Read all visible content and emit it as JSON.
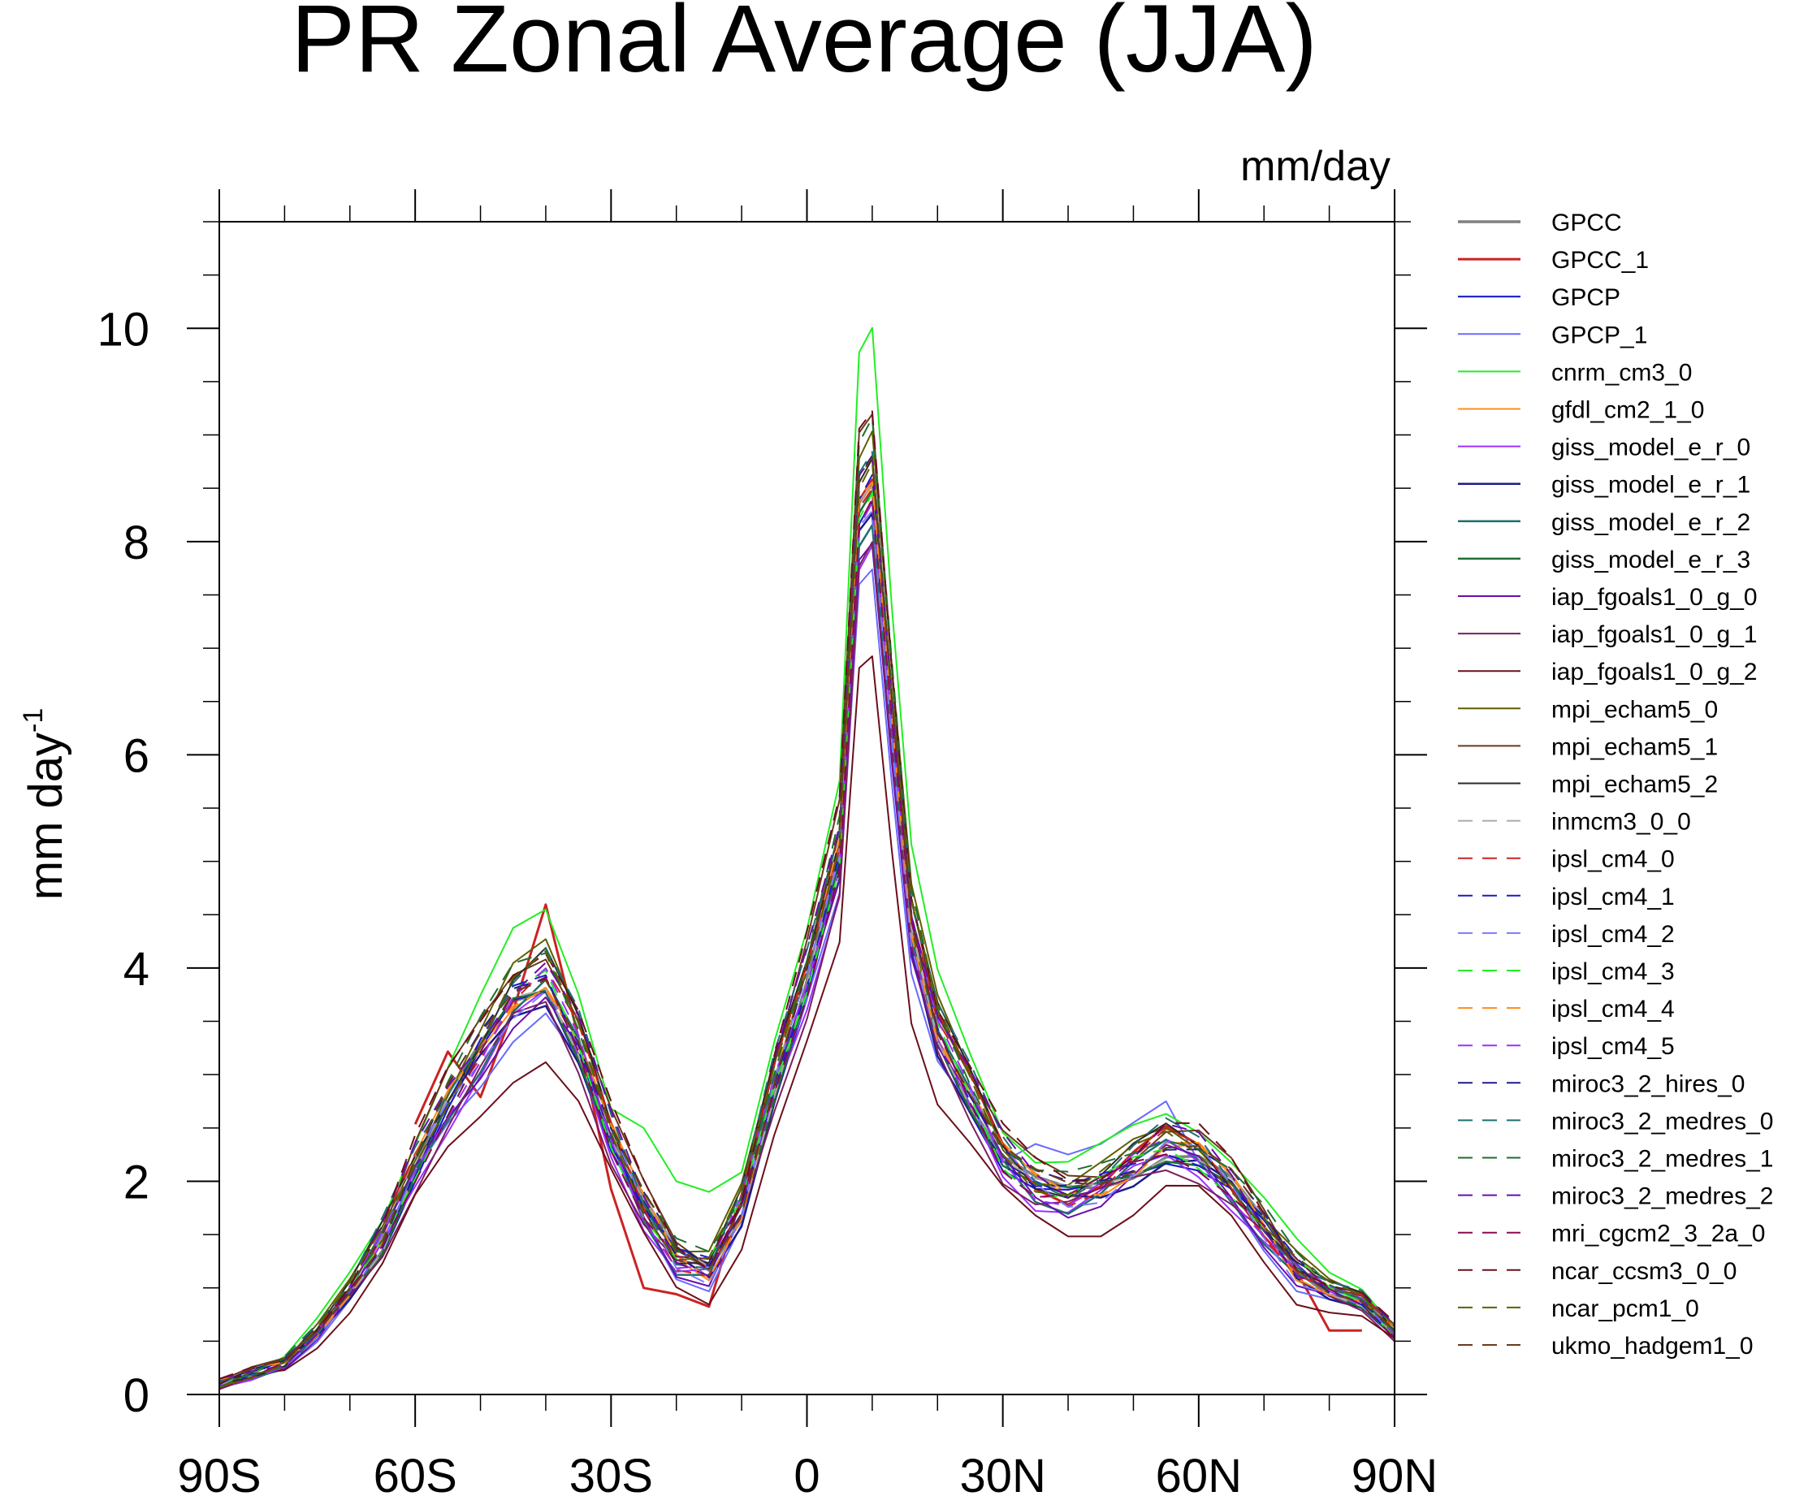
{
  "chart_data": {
    "type": "line",
    "title": "PR Zonal Average (JJA)",
    "units": "mm/day",
    "ylabel": "mm day",
    "ylabel_exponent": "-1",
    "xlabel": "",
    "xlim": [
      -90,
      90
    ],
    "ylim": [
      0,
      11
    ],
    "x_ticks": [
      -90,
      -60,
      -30,
      0,
      30,
      60,
      90
    ],
    "x_tick_labels": [
      "90S",
      "60S",
      "30S",
      "0",
      "30N",
      "60N",
      "90N"
    ],
    "y_ticks": [
      0,
      2,
      4,
      6,
      8,
      10
    ],
    "y_tick_labels": [
      "0",
      "2",
      "4",
      "6",
      "8",
      "10"
    ],
    "legend_position": "right",
    "base_profile": [
      [
        -90,
        0.1
      ],
      [
        -85,
        0.2
      ],
      [
        -80,
        0.3
      ],
      [
        -75,
        0.6
      ],
      [
        -70,
        1.0
      ],
      [
        -65,
        1.5
      ],
      [
        -60,
        2.2
      ],
      [
        -55,
        2.8
      ],
      [
        -50,
        3.3
      ],
      [
        -45,
        3.8
      ],
      [
        -40,
        4.0
      ],
      [
        -35,
        3.4
      ],
      [
        -30,
        2.5
      ],
      [
        -25,
        1.8
      ],
      [
        -20,
        1.3
      ],
      [
        -15,
        1.2
      ],
      [
        -10,
        1.8
      ],
      [
        -5,
        3.0
      ],
      [
        0,
        4.0
      ],
      [
        5,
        5.2
      ],
      [
        8,
        8.5
      ],
      [
        10,
        8.7
      ],
      [
        13,
        6.5
      ],
      [
        16,
        4.5
      ],
      [
        20,
        3.5
      ],
      [
        25,
        2.9
      ],
      [
        30,
        2.3
      ],
      [
        35,
        2.0
      ],
      [
        40,
        1.9
      ],
      [
        45,
        2.0
      ],
      [
        50,
        2.2
      ],
      [
        55,
        2.4
      ],
      [
        60,
        2.3
      ],
      [
        65,
        2.0
      ],
      [
        70,
        1.6
      ],
      [
        75,
        1.2
      ],
      [
        80,
        1.0
      ],
      [
        85,
        0.9
      ],
      [
        90,
        0.6
      ]
    ],
    "series": [
      {
        "name": "GPCC",
        "color": "#808080",
        "dash": "solid",
        "width": 3.5,
        "scale": 0.97,
        "variant": "obs"
      },
      {
        "name": "GPCC_1",
        "color": "#cc2222",
        "dash": "solid",
        "width": 3,
        "scale": 1.0,
        "variant": "gpcc1"
      },
      {
        "name": "GPCP",
        "color": "#1a1acc",
        "dash": "solid",
        "width": 2.2,
        "scale": 0.95,
        "variant": "obs"
      },
      {
        "name": "GPCP_1",
        "color": "#6a6aff",
        "dash": "solid",
        "width": 2,
        "scale": 0.9,
        "variant": "gpcp1"
      },
      {
        "name": "cnrm_cm3_0",
        "color": "#22ee22",
        "dash": "solid",
        "width": 2,
        "scale": 1.12,
        "variant": "wet"
      },
      {
        "name": "gfdl_cm2_1_0",
        "color": "#ff8c1a",
        "dash": "solid",
        "width": 2,
        "scale": 0.98,
        "variant": "model"
      },
      {
        "name": "giss_model_e_r_0",
        "color": "#9b30ff",
        "dash": "solid",
        "width": 2,
        "scale": 0.92,
        "variant": "model"
      },
      {
        "name": "giss_model_e_r_1",
        "color": "#1c1c8c",
        "dash": "solid",
        "width": 2.5,
        "scale": 0.94,
        "variant": "model"
      },
      {
        "name": "giss_model_e_r_2",
        "color": "#1f6f6f",
        "dash": "solid",
        "width": 2.5,
        "scale": 0.95,
        "variant": "model"
      },
      {
        "name": "giss_model_e_r_3",
        "color": "#1f6f2f",
        "dash": "solid",
        "width": 2.5,
        "scale": 0.96,
        "variant": "model"
      },
      {
        "name": "iap_fgoals1_0_g_0",
        "color": "#6a0dad",
        "dash": "solid",
        "width": 2,
        "scale": 0.93,
        "variant": "model"
      },
      {
        "name": "iap_fgoals1_0_g_1",
        "color": "#7a1f5f",
        "dash": "solid",
        "width": 2,
        "scale": 0.91,
        "variant": "model"
      },
      {
        "name": "iap_fgoals1_0_g_2",
        "color": "#6b0f1a",
        "dash": "solid",
        "width": 2,
        "scale": 0.8,
        "variant": "model"
      },
      {
        "name": "mpi_echam5_0",
        "color": "#5f5f00",
        "dash": "solid",
        "width": 2,
        "scale": 1.04,
        "variant": "model"
      },
      {
        "name": "mpi_echam5_1",
        "color": "#6b3a1a",
        "dash": "solid",
        "width": 2,
        "scale": 1.05,
        "variant": "model"
      },
      {
        "name": "mpi_echam5_2",
        "color": "#2a2a2a",
        "dash": "solid",
        "width": 2,
        "scale": 1.02,
        "variant": "model"
      },
      {
        "name": "inmcm3_0_0",
        "color": "#aaaaaa",
        "dash": "dashed",
        "width": 2,
        "scale": 0.97,
        "variant": "model"
      },
      {
        "name": "ipsl_cm4_0",
        "color": "#cc2222",
        "dash": "dashed",
        "width": 2,
        "scale": 0.99,
        "variant": "model"
      },
      {
        "name": "ipsl_cm4_1",
        "color": "#1a1acc",
        "dash": "dashed",
        "width": 2,
        "scale": 0.98,
        "variant": "model"
      },
      {
        "name": "ipsl_cm4_2",
        "color": "#7a7aff",
        "dash": "dashed",
        "width": 2,
        "scale": 0.96,
        "variant": "model"
      },
      {
        "name": "ipsl_cm4_3",
        "color": "#22ee22",
        "dash": "dashed",
        "width": 2,
        "scale": 0.97,
        "variant": "model"
      },
      {
        "name": "ipsl_cm4_4",
        "color": "#ff8c1a",
        "dash": "dashed",
        "width": 2,
        "scale": 0.98,
        "variant": "model"
      },
      {
        "name": "ipsl_cm4_5",
        "color": "#9b30ff",
        "dash": "dashed",
        "width": 2,
        "scale": 0.97,
        "variant": "model"
      },
      {
        "name": "miroc3_2_hires_0",
        "color": "#1c1c8c",
        "dash": "dashed",
        "width": 2,
        "scale": 1.0,
        "variant": "model"
      },
      {
        "name": "miroc3_2_medres_0",
        "color": "#1f6f6f",
        "dash": "dashed",
        "width": 2,
        "scale": 1.03,
        "variant": "model"
      },
      {
        "name": "miroc3_2_medres_1",
        "color": "#1f6f2f",
        "dash": "dashed",
        "width": 2,
        "scale": 1.04,
        "variant": "model"
      },
      {
        "name": "miroc3_2_medres_2",
        "color": "#6a0dad",
        "dash": "dashed",
        "width": 2,
        "scale": 1.02,
        "variant": "model"
      },
      {
        "name": "mri_cgcm2_3_2a_0",
        "color": "#8b0a50",
        "dash": "dashed",
        "width": 2,
        "scale": 0.96,
        "variant": "model"
      },
      {
        "name": "ncar_ccsm3_0_0",
        "color": "#6b0f1a",
        "dash": "dashed",
        "width": 2,
        "scale": 1.06,
        "variant": "model"
      },
      {
        "name": "ncar_pcm1_0",
        "color": "#5f5f00",
        "dash": "dashed",
        "width": 2,
        "scale": 1.01,
        "variant": "model"
      },
      {
        "name": "ukmo_hadgem1_0",
        "color": "#6b3a1a",
        "dash": "dashed",
        "width": 2,
        "scale": 1.0,
        "variant": "model"
      }
    ]
  }
}
